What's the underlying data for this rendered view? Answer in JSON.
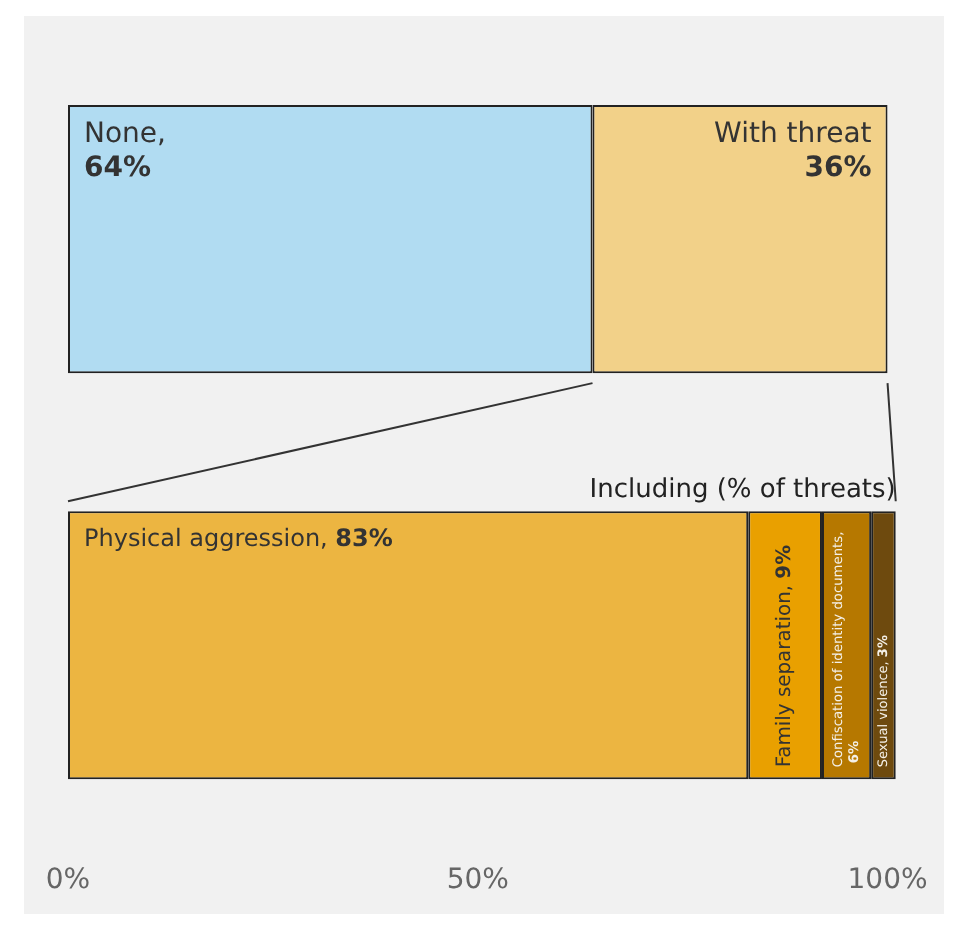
{
  "chart_data": {
    "type": "bar",
    "orientation": "horizontal",
    "stacked": true,
    "categories": [
      null,
      null
    ],
    "xlim": [
      0,
      101
    ],
    "xticks": [
      {
        "value": 0,
        "label": "0%"
      },
      {
        "value": 50,
        "label": "50%"
      },
      {
        "value": 100,
        "label": "100%"
      }
    ],
    "grid": false,
    "legend": false,
    "annotations": [
      "Including (% of threats)"
    ],
    "series": [
      {
        "name": "None,",
        "color": "#b1dcf2",
        "values": [
          64,
          null
        ],
        "value_labels": [
          "64%",
          null
        ]
      },
      {
        "name": "With threat",
        "color": "#f2d189",
        "values": [
          36,
          null
        ],
        "value_labels": [
          "36%",
          null
        ]
      },
      {
        "name": "Physical aggression,",
        "color": "#ecb541",
        "values": [
          null,
          83
        ],
        "value_labels": [
          null,
          "83%"
        ]
      },
      {
        "name": "Family separation,",
        "color": "#e9a000",
        "values": [
          null,
          9
        ],
        "value_labels": [
          null,
          "9%"
        ]
      },
      {
        "name": "Confiscation of identity documents,",
        "color": "#b67800",
        "values": [
          null,
          6
        ],
        "value_labels": [
          null,
          "6%"
        ]
      },
      {
        "name": "Sexual violence,",
        "color": "#6e4a0e",
        "values": [
          null,
          3
        ],
        "value_labels": [
          null,
          "3%"
        ]
      }
    ]
  }
}
